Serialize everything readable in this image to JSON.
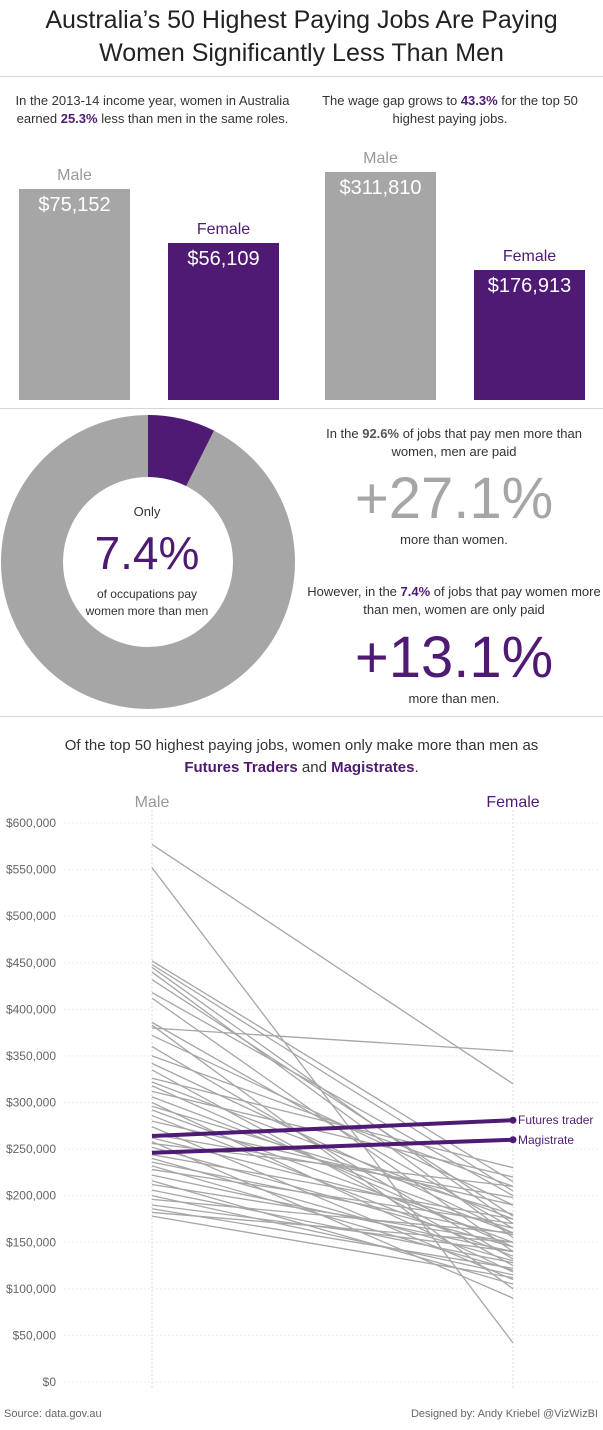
{
  "title_line1": "Australia’s 50 Highest Paying Jobs Are Paying",
  "title_line2": "Women Significantly Less Than Men",
  "left_intro": {
    "pre": "In the 2013-14 income year, women in Australia earned ",
    "highlight": "25.3%",
    "post": " less than men in the same roles."
  },
  "right_intro": {
    "pre": "The wage gap grows to ",
    "highlight": "43.3%",
    "post": " for the top 50 highest paying jobs."
  },
  "bars_all": {
    "male_label": "Male",
    "male_value": "$75,152",
    "female_label": "Female",
    "female_value": "$56,109"
  },
  "bars_top": {
    "male_label": "Male",
    "male_value": "$311,810",
    "female_label": "Female",
    "female_value": "$176,913"
  },
  "donut": {
    "only": "Only",
    "pct": "7.4%",
    "sub_line1": "of occupations pay",
    "sub_line2": "women more than men"
  },
  "stat1": {
    "pre": "In the ",
    "highlight": "92.6%",
    "post": " of jobs that pay men more than women, men are paid",
    "big": "+27.1%",
    "after": "more than women."
  },
  "stat2": {
    "pre": "However, in the ",
    "highlight": "7.4%",
    "post": " of jobs that pay women more than men, women are only paid",
    "big": "+13.1%",
    "after": "more than men."
  },
  "slope_heading": {
    "line1": "Of the top 50 highest paying jobs, women only make more than men as",
    "hl1": "Futures Traders",
    "and": " and ",
    "hl2": "Magistrates",
    "end": "."
  },
  "slope_labels": {
    "male": "Male",
    "female": "Female",
    "futures": "Futures trader",
    "magistrate": "Magistrate"
  },
  "footer": {
    "source": "Source: data.gov.au",
    "credit": "Designed by: Andy Kriebel @VizWizBI"
  },
  "colors": {
    "male": "#a6a6a6",
    "female": "#4f1a74"
  },
  "chart_data": [
    {
      "type": "bar",
      "categories": [
        "Male",
        "Female"
      ],
      "values": [
        75152,
        56109
      ],
      "ylim": [
        0,
        80000
      ]
    },
    {
      "type": "bar",
      "categories": [
        "Male",
        "Female"
      ],
      "values": [
        311810,
        176913
      ],
      "ylim": [
        0,
        330000
      ]
    },
    {
      "type": "pie",
      "categories": [
        "women paid more",
        "men paid more"
      ],
      "values": [
        7.4,
        92.6
      ]
    },
    {
      "type": "line",
      "categories": [
        "Male",
        "Female"
      ],
      "ylim": [
        0,
        600000
      ],
      "yticks": [
        "$0",
        "$50,000",
        "$100,000",
        "$150,000",
        "$200,000",
        "$250,000",
        "$300,000",
        "$350,000",
        "$400,000",
        "$450,000",
        "$500,000",
        "$550,000",
        "$600,000"
      ],
      "series": [
        {
          "values": [
            577000,
            320000
          ]
        },
        {
          "values": [
            552000,
            42000
          ]
        },
        {
          "values": [
            452000,
            215000
          ]
        },
        {
          "values": [
            448000,
            205000
          ]
        },
        {
          "values": [
            445000,
            170000
          ]
        },
        {
          "values": [
            440000,
            155000
          ]
        },
        {
          "values": [
            432000,
            178000
          ]
        },
        {
          "values": [
            418000,
            200000
          ]
        },
        {
          "values": [
            412000,
            140000
          ]
        },
        {
          "values": [
            386000,
            165000
          ]
        },
        {
          "values": [
            383000,
            100000
          ]
        },
        {
          "values": [
            380000,
            355000
          ]
        },
        {
          "values": [
            372000,
            190000
          ]
        },
        {
          "values": [
            360000,
            132000
          ]
        },
        {
          "values": [
            350000,
            210000
          ]
        },
        {
          "values": [
            342000,
            160000
          ]
        },
        {
          "values": [
            335000,
            125000
          ]
        },
        {
          "values": [
            322000,
            175000
          ]
        },
        {
          "values": [
            318000,
            145000
          ]
        },
        {
          "values": [
            312000,
            220000
          ]
        },
        {
          "values": [
            306000,
            160000
          ]
        },
        {
          "values": [
            300000,
            118000
          ]
        },
        {
          "values": [
            296000,
            180000
          ]
        },
        {
          "values": [
            292000,
            150000
          ]
        },
        {
          "values": [
            286000,
            135000
          ]
        },
        {
          "values": [
            280000,
            190000
          ]
        },
        {
          "values": [
            274000,
            110000
          ]
        },
        {
          "values": [
            262000,
            165000
          ]
        },
        {
          "values": [
            258000,
            90000
          ]
        },
        {
          "values": [
            252000,
            145000
          ]
        },
        {
          "values": [
            244000,
            175000
          ]
        },
        {
          "values": [
            240000,
            130000
          ]
        },
        {
          "values": [
            236000,
            158000
          ]
        },
        {
          "values": [
            232000,
            120000
          ]
        },
        {
          "values": [
            228000,
            170000
          ]
        },
        {
          "values": [
            222000,
            140000
          ]
        },
        {
          "values": [
            216000,
            105000
          ]
        },
        {
          "values": [
            212000,
            150000
          ]
        },
        {
          "values": [
            206000,
            128000
          ]
        },
        {
          "values": [
            200000,
            115000
          ]
        },
        {
          "values": [
            196000,
            160000
          ]
        },
        {
          "values": [
            190000,
            140000
          ]
        },
        {
          "values": [
            186000,
            122000
          ]
        },
        {
          "values": [
            182000,
            150000
          ]
        },
        {
          "values": [
            178000,
            112000
          ]
        },
        {
          "values": [
            256000,
            210000
          ]
        },
        {
          "values": [
            266000,
            198000
          ]
        },
        {
          "values": [
            326000,
            230000
          ]
        },
        {
          "name": "Futures trader",
          "values": [
            264000,
            281000
          ],
          "highlight": true
        },
        {
          "name": "Magistrate",
          "values": [
            246000,
            260000
          ],
          "highlight": true
        }
      ]
    }
  ]
}
